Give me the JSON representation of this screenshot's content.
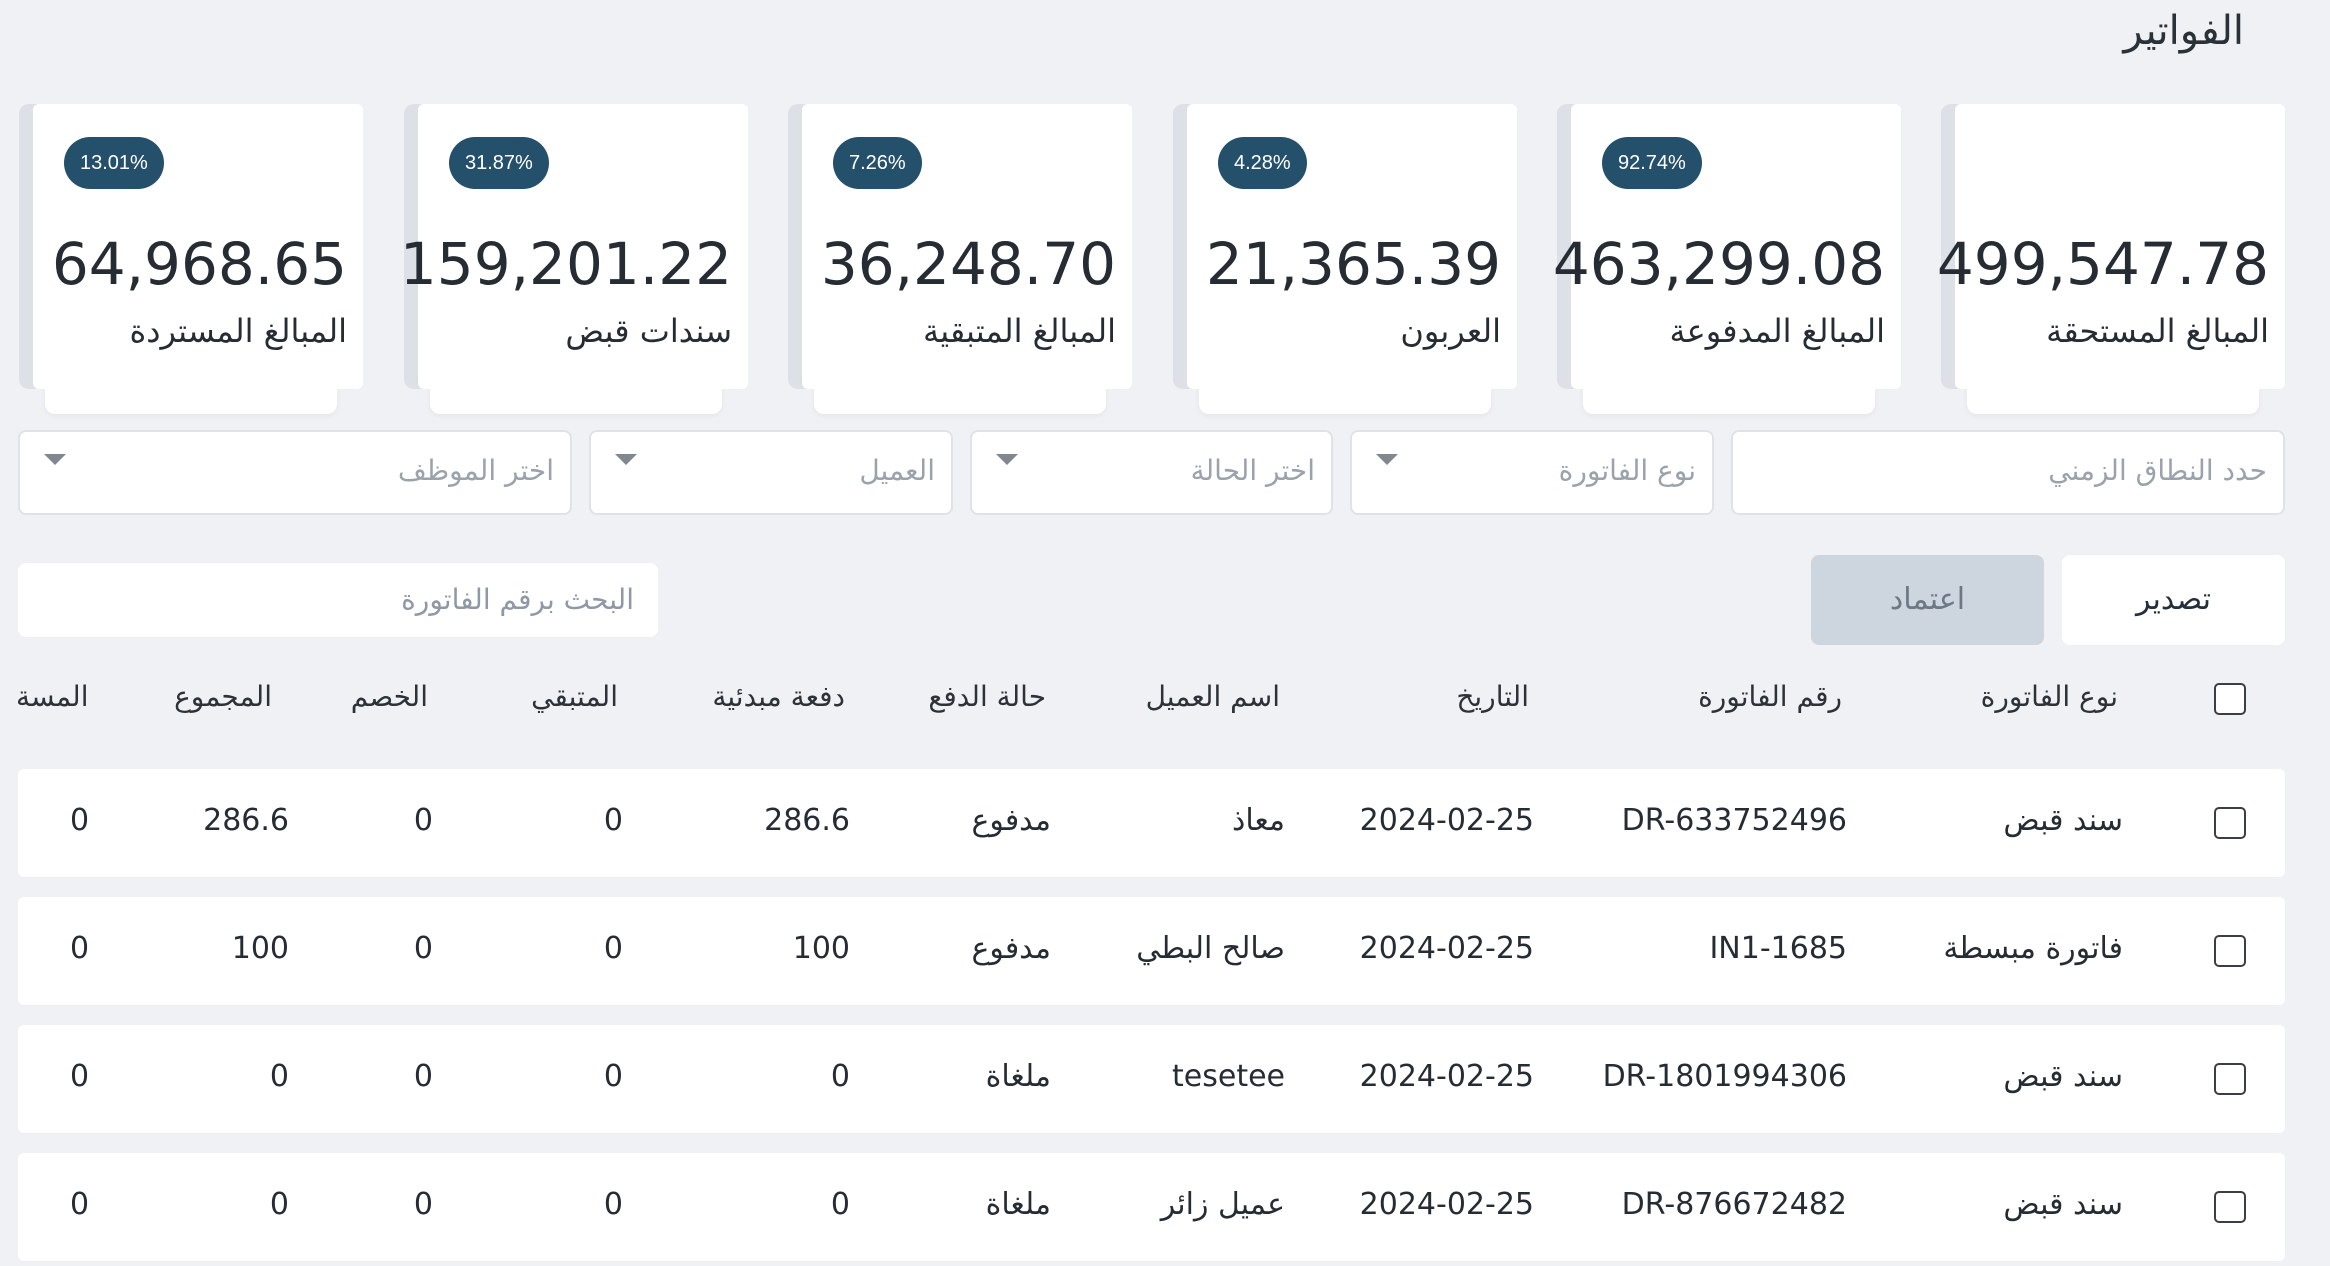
{
  "page": {
    "title": "الفواتير"
  },
  "cards": [
    {
      "value": "499,547.78",
      "label": "المبالغ المستحقة",
      "badge": ""
    },
    {
      "value": "463,299.08",
      "label": "المبالغ المدفوعة",
      "badge": "92.74%"
    },
    {
      "value": "21,365.39",
      "label": "العربون",
      "badge": "4.28%"
    },
    {
      "value": "36,248.70",
      "label": "المبالغ المتبقية",
      "badge": "7.26%"
    },
    {
      "value": "159,201.22",
      "label": "سندات قبض",
      "badge": "31.87%"
    },
    {
      "value": "64,968.65",
      "label": "المبالغ المستردة",
      "badge": "13.01%"
    }
  ],
  "filters": {
    "date_range": "حدد النطاق الزمني",
    "invoice_type": "نوع الفاتورة",
    "status": "اختر الحالة",
    "client": "العميل",
    "employee": "اختر الموظف"
  },
  "actions": {
    "export": "تصدير",
    "approve": "اعتماد"
  },
  "search": {
    "placeholder": "البحث برقم الفاتورة"
  },
  "table": {
    "headers": [
      "نوع الفاتورة",
      "رقم الفاتورة",
      "التاريخ",
      "اسم العميل",
      "حالة الدفع",
      "دفعة مبدئية",
      "المتبقي",
      "الخصم",
      "المجموع",
      "المسة"
    ],
    "rows": [
      [
        "سند قبض",
        "DR-633752496",
        "2024-02-25",
        "معاذ",
        "مدفوع",
        "286.6",
        "0",
        "0",
        "286.6",
        "0"
      ],
      [
        "فاتورة مبسطة",
        "IN1-1685",
        "2024-02-25",
        "صالح البطي",
        "مدفوع",
        "100",
        "0",
        "0",
        "100",
        "0"
      ],
      [
        "سند قبض",
        "DR-1801994306",
        "2024-02-25",
        "tesetee",
        "ملغاة",
        "0",
        "0",
        "0",
        "0",
        "0"
      ],
      [
        "سند قبض",
        "DR-876672482",
        "2024-02-25",
        "عميل زائر",
        "ملغاة",
        "0",
        "0",
        "0",
        "0",
        "0"
      ]
    ]
  },
  "colors": {
    "badge": "#24506b",
    "background": "#eff1f5",
    "approve_disabled": "#cdd5de"
  }
}
